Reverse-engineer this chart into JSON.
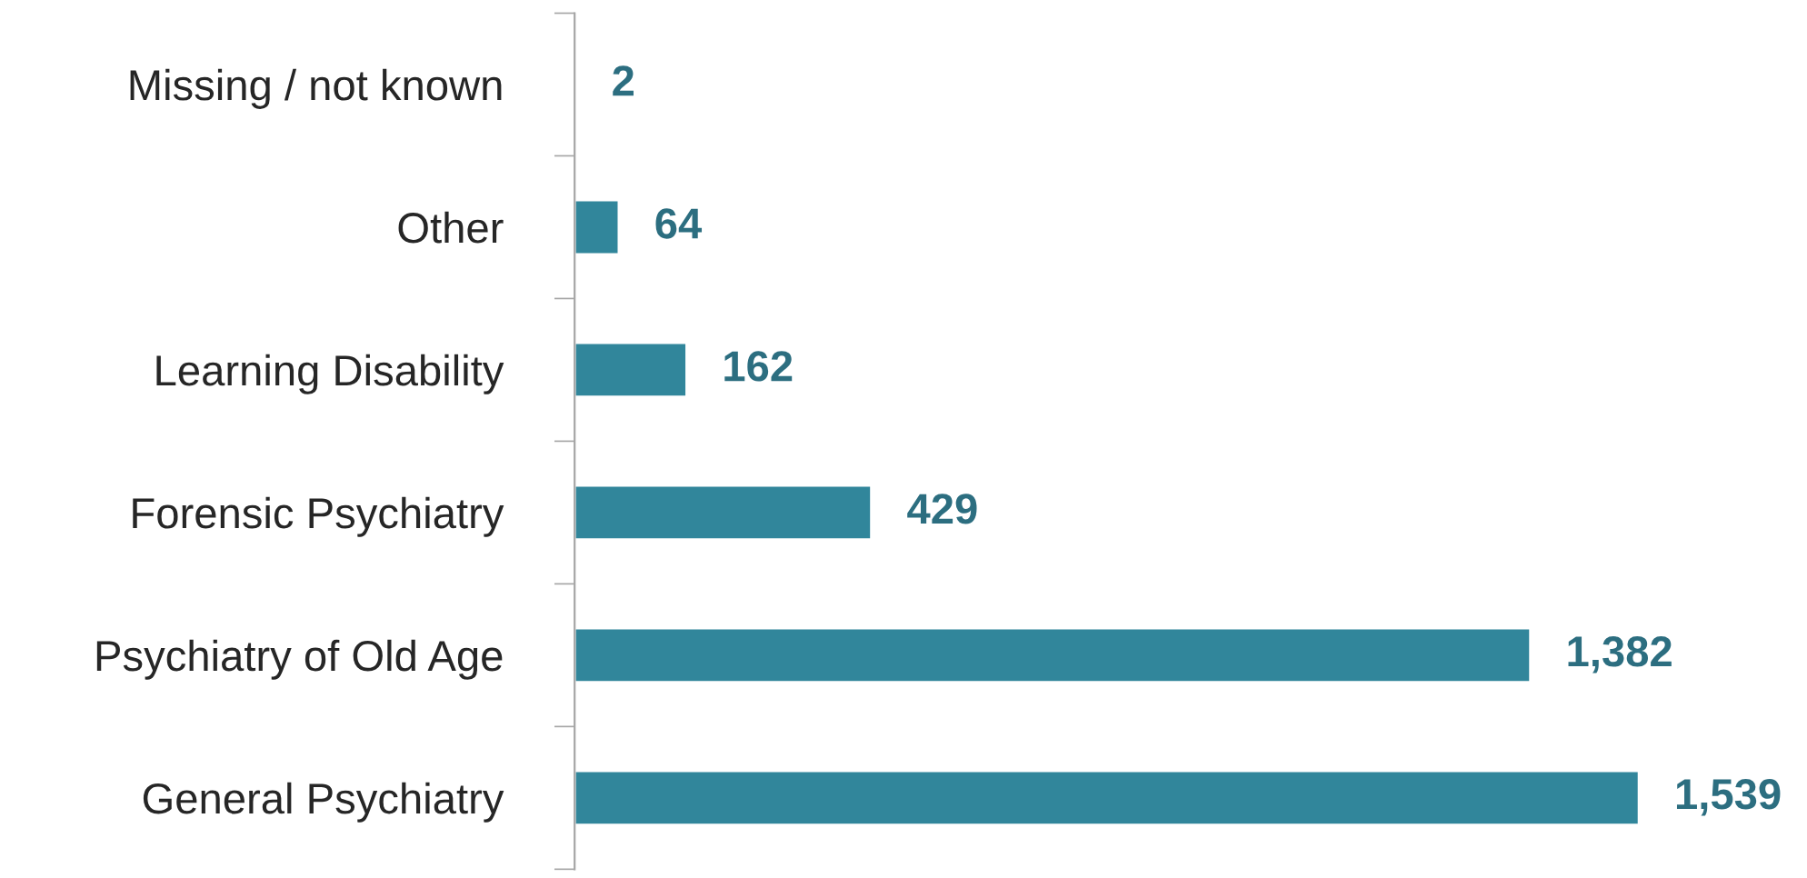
{
  "chart_data": {
    "type": "bar",
    "orientation": "horizontal",
    "categories": [
      "Missing / not known",
      "Other",
      "Learning Disability",
      "Forensic Psychiatry",
      "Psychiatry of Old Age",
      "General Psychiatry"
    ],
    "values": [
      2,
      64,
      162,
      429,
      1382,
      1539
    ],
    "value_labels": [
      "2",
      "64",
      "162",
      "429",
      "1,382",
      "1,539"
    ],
    "color": "#31869b",
    "grid": false,
    "legend": false
  }
}
